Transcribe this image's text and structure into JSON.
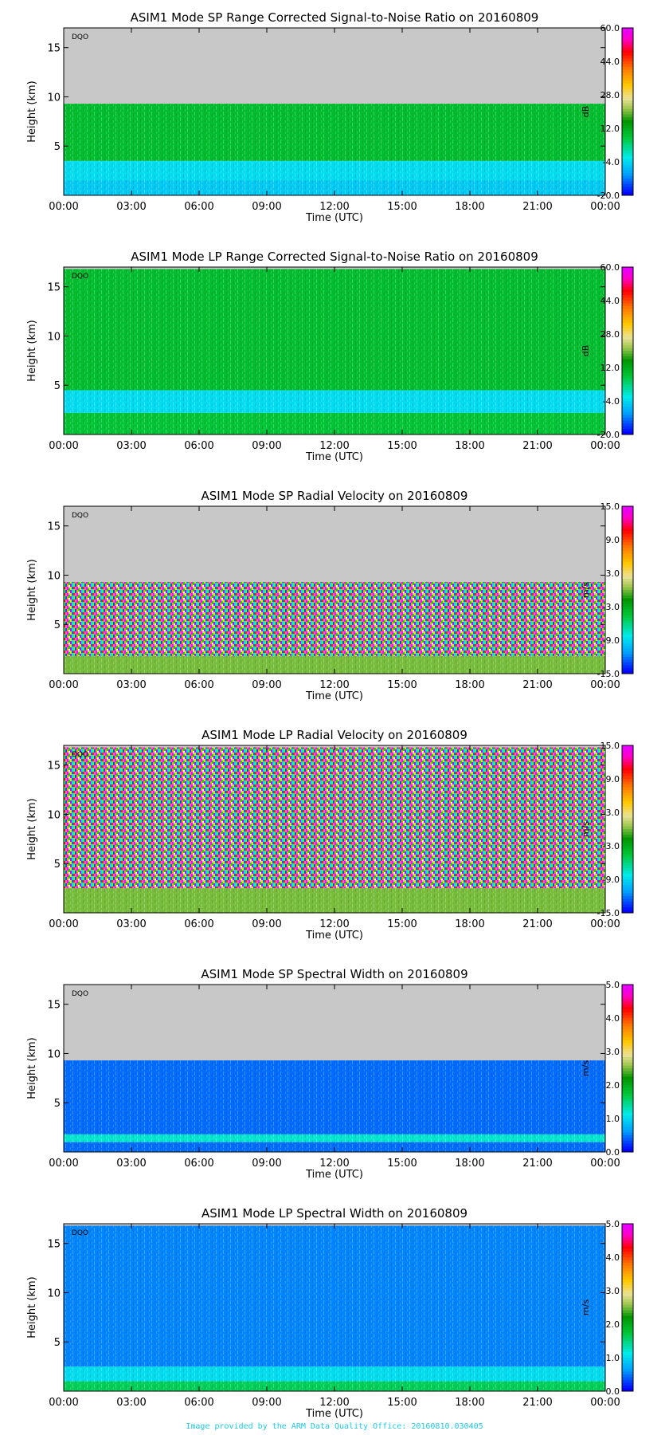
{
  "panels": [
    {
      "title": "ASIM1 Mode SP Range Corrected Signal-to-Noise Ratio on 20160809",
      "ylabel": "Height (km)",
      "xlabel": "Time (UTC)",
      "flag": "DQO",
      "unit": "dB",
      "colorbar_ticks": [
        "60.0",
        "44.0",
        "28.0",
        "12.0",
        "-4.0",
        "-20.0"
      ]
    },
    {
      "title": "ASIM1 Mode LP Range Corrected Signal-to-Noise Ratio on 20160809",
      "ylabel": "Height (km)",
      "xlabel": "Time (UTC)",
      "flag": "DQO",
      "unit": "dB",
      "colorbar_ticks": [
        "60.0",
        "44.0",
        "28.0",
        "12.0",
        "-4.0",
        "-20.0"
      ]
    },
    {
      "title": "ASIM1 Mode SP Radial Velocity  on 20160809",
      "ylabel": "Height (km)",
      "xlabel": "Time (UTC)",
      "flag": "DQO",
      "unit": "m/s",
      "colorbar_ticks": [
        "15.0",
        "9.0",
        "3.0",
        "-3.0",
        "-9.0",
        "-15.0"
      ]
    },
    {
      "title": "ASIM1 Mode LP Radial Velocity  on 20160809",
      "ylabel": "Height (km)",
      "xlabel": "Time (UTC)",
      "flag": "DQO",
      "unit": "m/s",
      "colorbar_ticks": [
        "15.0",
        "9.0",
        "3.0",
        "-3.0",
        "-9.0",
        "-15.0"
      ]
    },
    {
      "title": "ASIM1 Mode SP Spectral Width  on 20160809",
      "ylabel": "Height (km)",
      "xlabel": "Time (UTC)",
      "flag": "DQO",
      "unit": "m/s",
      "colorbar_ticks": [
        "5.0",
        "4.0",
        "3.0",
        "2.0",
        "1.0",
        "0.0"
      ]
    },
    {
      "title": "ASIM1 Mode LP Spectral Width  on 20160809",
      "ylabel": "Height (km)",
      "xlabel": "Time (UTC)",
      "flag": "DQO",
      "unit": "m/s",
      "colorbar_ticks": [
        "5.0",
        "4.0",
        "3.0",
        "2.0",
        "1.0",
        "0.0"
      ]
    }
  ],
  "footer": "Image provided by the ARM Data Quality Office: 20160810.030405",
  "chart_data": [
    {
      "type": "heatmap",
      "title": "ASIM1 Mode SP Range Corrected Signal-to-Noise Ratio on 20160809",
      "xlabel": "Time (UTC)",
      "ylabel": "Height (km)",
      "x_ticks": [
        "00:00",
        "03:00",
        "06:00",
        "09:00",
        "12:00",
        "15:00",
        "18:00",
        "21:00",
        "00:00"
      ],
      "y_ticks": [
        5,
        10,
        15
      ],
      "ylim": [
        0,
        17
      ],
      "colorbar": {
        "unit": "dB",
        "range": [
          -20,
          60
        ],
        "ticks": [
          60,
          44,
          28,
          12,
          -4,
          -20
        ]
      },
      "no_data_above_km": 9.3,
      "bands": [
        {
          "from_km": 0,
          "to_km": 1.5,
          "value": -6
        },
        {
          "from_km": 1.5,
          "to_km": 3.5,
          "value": -4
        },
        {
          "from_km": 3.5,
          "to_km": 9.3,
          "value": 9
        }
      ]
    },
    {
      "type": "heatmap",
      "title": "ASIM1 Mode LP Range Corrected Signal-to-Noise Ratio on 20160809",
      "xlabel": "Time (UTC)",
      "ylabel": "Height (km)",
      "x_ticks": [
        "00:00",
        "03:00",
        "06:00",
        "09:00",
        "12:00",
        "15:00",
        "18:00",
        "21:00",
        "00:00"
      ],
      "y_ticks": [
        5,
        10,
        15
      ],
      "ylim": [
        0,
        17
      ],
      "colorbar": {
        "unit": "dB",
        "range": [
          -20,
          60
        ],
        "ticks": [
          60,
          44,
          28,
          12,
          -4,
          -20
        ]
      },
      "no_data_above_km": 16.8,
      "bands": [
        {
          "from_km": 0,
          "to_km": 2.2,
          "value": 8
        },
        {
          "from_km": 2.2,
          "to_km": 4.5,
          "value": -4
        },
        {
          "from_km": 4.5,
          "to_km": 16.8,
          "value": 9
        }
      ]
    },
    {
      "type": "heatmap",
      "title": "ASIM1 Mode SP Radial Velocity  on 20160809",
      "xlabel": "Time (UTC)",
      "ylabel": "Height (km)",
      "x_ticks": [
        "00:00",
        "03:00",
        "06:00",
        "09:00",
        "12:00",
        "15:00",
        "18:00",
        "21:00",
        "00:00"
      ],
      "y_ticks": [
        5,
        10,
        15
      ],
      "ylim": [
        0,
        17
      ],
      "colorbar": {
        "unit": "m/s",
        "range": [
          -15,
          15
        ],
        "ticks": [
          15,
          9,
          3,
          -3,
          -9,
          -15
        ]
      },
      "no_data_above_km": 9.3,
      "bands": [
        {
          "from_km": 0,
          "to_km": 1.8,
          "value": 0
        },
        {
          "from_km": 1.8,
          "to_km": 9.3,
          "value": "random"
        }
      ]
    },
    {
      "type": "heatmap",
      "title": "ASIM1 Mode LP Radial Velocity  on 20160809",
      "xlabel": "Time (UTC)",
      "ylabel": "Height (km)",
      "x_ticks": [
        "00:00",
        "03:00",
        "06:00",
        "09:00",
        "12:00",
        "15:00",
        "18:00",
        "21:00",
        "00:00"
      ],
      "y_ticks": [
        5,
        10,
        15
      ],
      "ylim": [
        0,
        17
      ],
      "colorbar": {
        "unit": "m/s",
        "range": [
          -15,
          15
        ],
        "ticks": [
          15,
          9,
          3,
          -3,
          -9,
          -15
        ]
      },
      "no_data_above_km": 16.8,
      "bands": [
        {
          "from_km": 0,
          "to_km": 2.5,
          "value": 0
        },
        {
          "from_km": 2.5,
          "to_km": 16.8,
          "value": "random"
        }
      ]
    },
    {
      "type": "heatmap",
      "title": "ASIM1 Mode SP Spectral Width  on 20160809",
      "xlabel": "Time (UTC)",
      "ylabel": "Height (km)",
      "x_ticks": [
        "00:00",
        "03:00",
        "06:00",
        "09:00",
        "12:00",
        "15:00",
        "18:00",
        "21:00",
        "00:00"
      ],
      "y_ticks": [
        5,
        10,
        15
      ],
      "ylim": [
        0,
        17
      ],
      "colorbar": {
        "unit": "m/s",
        "range": [
          0,
          5
        ],
        "ticks": [
          5,
          4,
          3,
          2,
          1,
          0
        ]
      },
      "no_data_above_km": 9.3,
      "bands": [
        {
          "from_km": 0,
          "to_km": 1.0,
          "value": 0.4
        },
        {
          "from_km": 1.0,
          "to_km": 1.8,
          "value": 1.2
        },
        {
          "from_km": 1.8,
          "to_km": 9.3,
          "value": 0.4
        }
      ]
    },
    {
      "type": "heatmap",
      "title": "ASIM1 Mode LP Spectral Width  on 20160809",
      "xlabel": "Time (UTC)",
      "ylabel": "Height (km)",
      "x_ticks": [
        "00:00",
        "03:00",
        "06:00",
        "09:00",
        "12:00",
        "15:00",
        "18:00",
        "21:00",
        "00:00"
      ],
      "y_ticks": [
        5,
        10,
        15
      ],
      "ylim": [
        0,
        17
      ],
      "colorbar": {
        "unit": "m/s",
        "range": [
          0,
          5
        ],
        "ticks": [
          5,
          4,
          3,
          2,
          1,
          0
        ]
      },
      "no_data_above_km": 16.8,
      "bands": [
        {
          "from_km": 0,
          "to_km": 1.0,
          "value": 1.6
        },
        {
          "from_km": 1.0,
          "to_km": 2.5,
          "value": 1.0
        },
        {
          "from_km": 2.5,
          "to_km": 16.8,
          "value": 0.5
        }
      ]
    }
  ]
}
